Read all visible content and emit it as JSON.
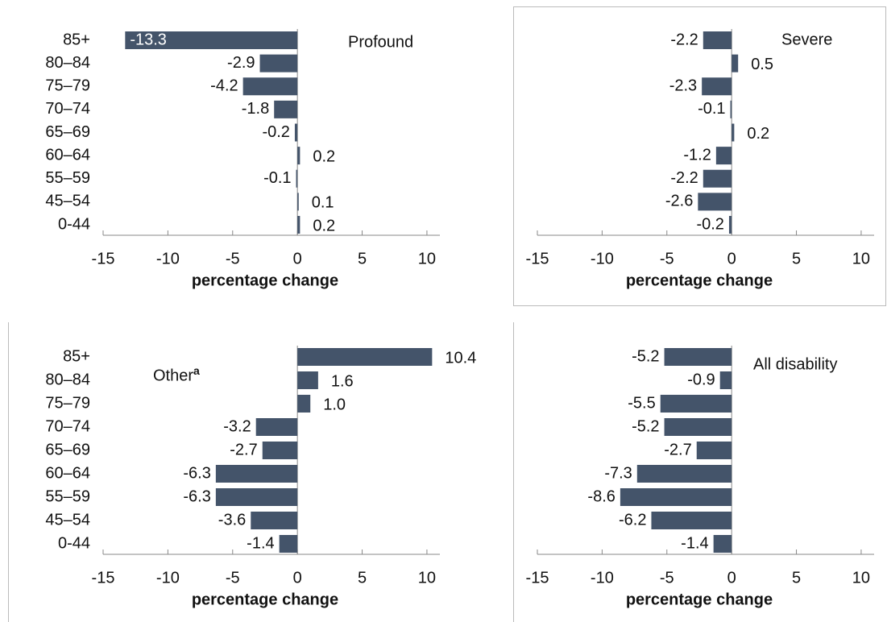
{
  "chart_data": [
    {
      "type": "barh",
      "title": "Profound",
      "categories": [
        "85+",
        "80–84",
        "75–79",
        "70–74",
        "65–69",
        "60–64",
        "55–59",
        "45–54",
        "0-44"
      ],
      "values": [
        -13.3,
        -2.9,
        -4.2,
        -1.8,
        -0.2,
        0.2,
        -0.1,
        0.1,
        0.2
      ],
      "color": "#44546a",
      "xlabel": "percentage change",
      "xlim": [
        -15,
        11
      ],
      "xticks": [
        -15,
        -10,
        -5,
        0,
        5,
        10
      ]
    },
    {
      "type": "barh",
      "title": "Severe",
      "values": [
        -2.2,
        0.5,
        -2.3,
        -0.1,
        0.2,
        -1.2,
        -2.2,
        -2.6,
        -0.2
      ],
      "color": "#44546a",
      "xlabel": "percentage change",
      "xlim": [
        -15,
        11
      ],
      "xticks": [
        -15,
        -10,
        -5,
        0,
        5,
        10
      ]
    },
    {
      "type": "barh",
      "title": "Other",
      "title_superscript": "a",
      "categories": [
        "85+",
        "80–84",
        "75–79",
        "70–74",
        "65–69",
        "60–64",
        "55–59",
        "45–54",
        "0-44"
      ],
      "values": [
        10.4,
        1.6,
        1.0,
        -3.2,
        -2.7,
        -6.3,
        -6.3,
        -3.6,
        -1.4
      ],
      "value_labels": [
        "10.4",
        "1.6",
        "1.0",
        "-3.2",
        "-2.7",
        "-6.3",
        "-6.3",
        "-3.6",
        "-1.4"
      ],
      "color": "#44546a",
      "xlabel": "percentage change",
      "xlim": [
        -15,
        11
      ],
      "xticks": [
        -15,
        -10,
        -5,
        0,
        5,
        10
      ]
    },
    {
      "type": "barh",
      "title": "All disability",
      "values": [
        -5.2,
        -0.9,
        -5.5,
        -5.2,
        -2.7,
        -7.3,
        -8.6,
        -6.2,
        -1.4
      ],
      "color": "#44546a",
      "xlabel": "percentage change",
      "xlim": [
        -15,
        11
      ],
      "xticks": [
        -15,
        -10,
        -5,
        0,
        5,
        10
      ]
    }
  ]
}
